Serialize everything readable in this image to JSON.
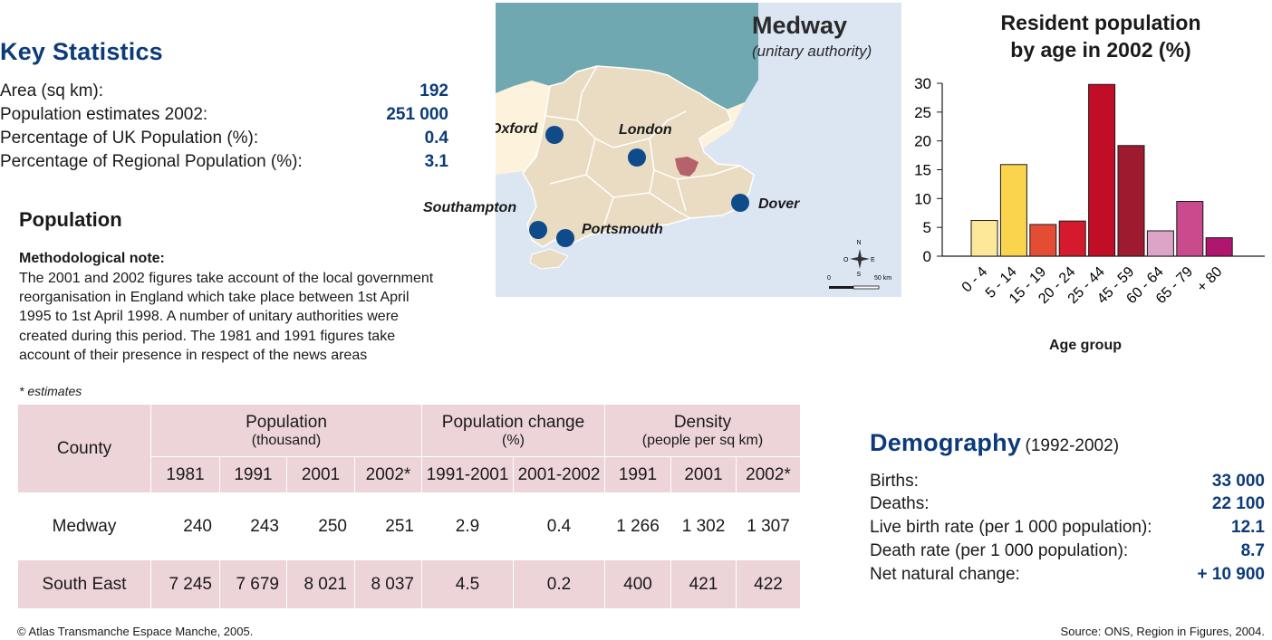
{
  "key_statistics": {
    "title": "Key Statistics",
    "rows": [
      {
        "label": "Area (sq km):",
        "value": "192"
      },
      {
        "label": "Population estimates 2002:",
        "value": "251 000"
      },
      {
        "label": "Percentage of UK Population (%):",
        "value": "0.4"
      },
      {
        "label": "Percentage of Regional Population (%):",
        "value": "3.1"
      }
    ]
  },
  "population": {
    "title": "Population",
    "note_title": "Methodological note:",
    "note_lines": [
      "The 2001 and 2002 figures take account of the local government",
      "reorganisation in England which take place between 1st April",
      "1995 to 1st April 1998. A number of unitary authorities were",
      "created during this period. The 1981 and 1991 figures take",
      "account of their presence in respect of the news areas"
    ],
    "estimates_note": "* estimates"
  },
  "table": {
    "county_header": "County",
    "group_headers": [
      {
        "title": "Population",
        "sub": "(thousand)"
      },
      {
        "title": "Population change",
        "sub": "(%)"
      },
      {
        "title": "Density",
        "sub": "(people per sq km)"
      }
    ],
    "sub_headers": [
      "1981",
      "1991",
      "2001",
      "2002*",
      "1991-2001",
      "2001-2002",
      "1991",
      "2001",
      "2002*"
    ],
    "rows": [
      {
        "county": "Medway",
        "cells": [
          "240",
          "243",
          "250",
          "251",
          "2.9",
          "0.4",
          "1 266",
          "1 302",
          "1 307"
        ]
      },
      {
        "county": "South East",
        "cells": [
          "7 245",
          "7 679",
          "8 021",
          "8 037",
          "4.5",
          "0.2",
          "400",
          "421",
          "422"
        ]
      }
    ]
  },
  "map": {
    "title": "Medway",
    "subtitle": "(unitary authority)",
    "cities": [
      "Oxford",
      "London",
      "Southampton",
      "Portsmouth",
      "Dover"
    ],
    "scale_start": "0",
    "scale_end": "50 km",
    "compass": {
      "n": "N",
      "s": "S",
      "e": "E",
      "o": "O"
    },
    "colors": {
      "sea_north": "#6fa8b1",
      "sea": "#dce6f3",
      "region": "#e9dcc3",
      "land": "#fdf3dc",
      "highlight": "#b5626b",
      "city": "#0f4a8a"
    }
  },
  "demography": {
    "title": "Demography",
    "period": "(1992-2002)",
    "rows": [
      {
        "label": "Births:",
        "value": "33 000"
      },
      {
        "label": "Deaths:",
        "value": "22 100"
      },
      {
        "label": "Live birth rate (per 1 000 population):",
        "value": "12.1"
      },
      {
        "label": "Death rate (per 1 000 population):",
        "value": "8.7"
      },
      {
        "label": "Net natural change:",
        "value": "+ 10 900"
      }
    ]
  },
  "chart_data": {
    "type": "bar",
    "title_lines": [
      "Resident population",
      "by age in 2002 (%)"
    ],
    "xlabel": "Age group",
    "ylabel": "",
    "categories": [
      "0 - 4",
      "5 - 14",
      "15 - 19",
      "20 - 24",
      "25 - 44",
      "45 - 59",
      "60 - 64",
      "65 - 79",
      "+ 80"
    ],
    "values": [
      6.2,
      15.9,
      5.5,
      6.1,
      29.8,
      19.2,
      4.4,
      9.5,
      3.2
    ],
    "colors": [
      "#fde89a",
      "#fbd44e",
      "#e44d33",
      "#d41a2c",
      "#c10d26",
      "#9e1a2e",
      "#dca4c7",
      "#c94b8e",
      "#b0166f"
    ],
    "ylim": [
      0,
      30
    ],
    "yticks": [
      0,
      5,
      10,
      15,
      20,
      25,
      30
    ],
    "grid": false
  },
  "footer": {
    "left": "© Atlas Transmanche Espace Manche, 2005.",
    "right": "Source: ONS, Region in Figures, 2004."
  }
}
